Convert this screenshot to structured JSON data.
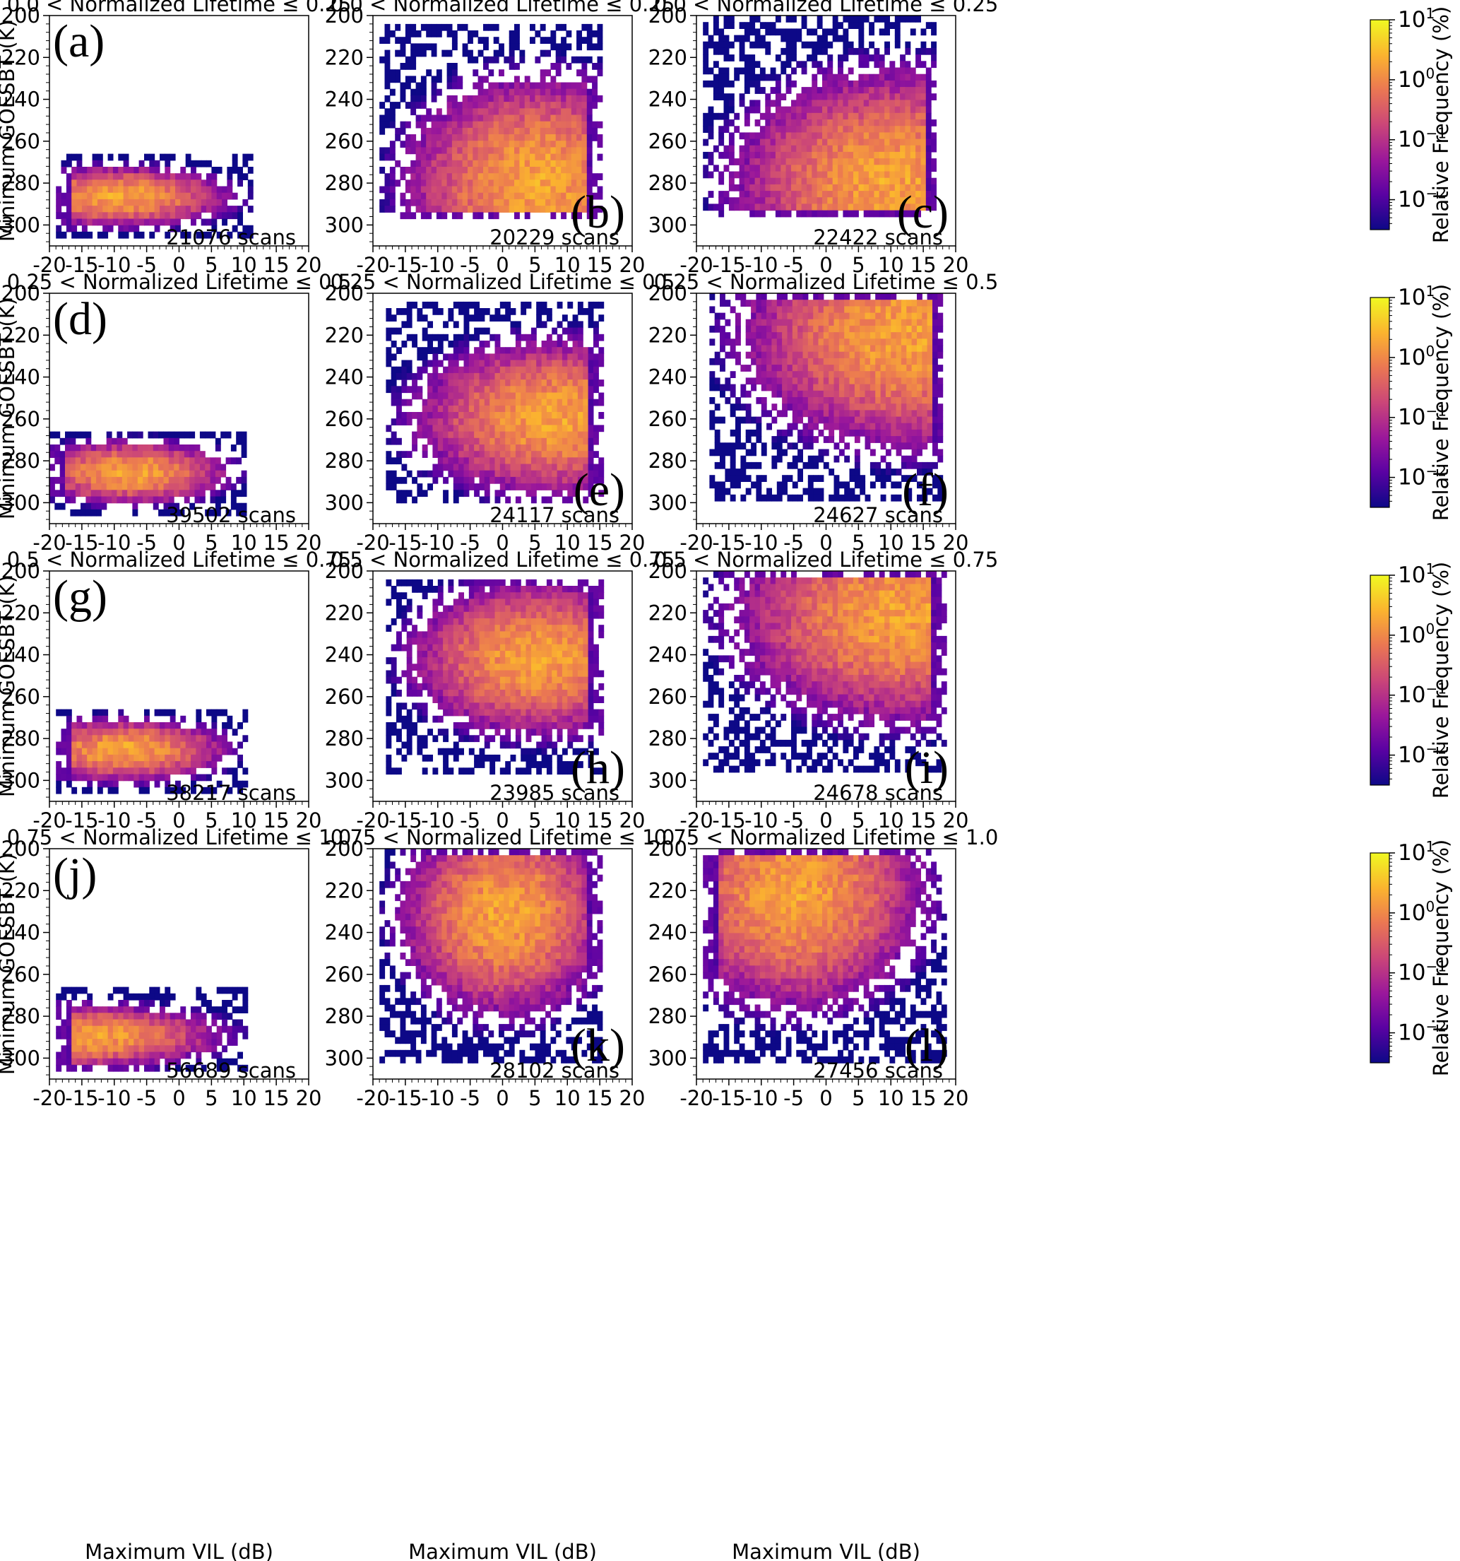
{
  "figure": {
    "colormap_stops": [
      "#0d0887",
      "#5b02a3",
      "#9a179b",
      "#cb4678",
      "#eb7852",
      "#fbb32f",
      "#f0f921"
    ],
    "colorbar": {
      "label": "Relative Frequency (%)",
      "scale": "log",
      "ticks": [
        {
          "base": "10",
          "exp": "1"
        },
        {
          "base": "10",
          "exp": "0"
        },
        {
          "base": "10",
          "exp": "−1"
        },
        {
          "base": "10",
          "exp": "−2"
        }
      ]
    },
    "x_tick_labels": [
      "-20",
      "-15",
      "-10",
      "-5",
      "0",
      "5",
      "10",
      "15",
      "20"
    ],
    "y_tick_labels": [
      "200",
      "220",
      "240",
      "260",
      "280",
      "300"
    ],
    "xlabel": "Maximum VIL (dB)",
    "ylabel": "Minimum GOESBT (K)",
    "rows": [
      {
        "title": "0.0 < Normalized Lifetime ≤ 0.25"
      },
      {
        "title": "0.25 < Normalized Lifetime ≤ 0.5"
      },
      {
        "title": "0.5 < Normalized Lifetime ≤ 0.75"
      },
      {
        "title": "0.75 < Normalized Lifetime ≤ 1.0"
      }
    ],
    "panels": [
      {
        "letter": "(a)",
        "scans": "21076 scans"
      },
      {
        "letter": "(b)",
        "scans": "20229 scans"
      },
      {
        "letter": "(c)",
        "scans": "22422 scans"
      },
      {
        "letter": "(d)",
        "scans": "39502 scans"
      },
      {
        "letter": "(e)",
        "scans": "24117 scans"
      },
      {
        "letter": "(f)",
        "scans": "24627 scans"
      },
      {
        "letter": "(g)",
        "scans": "38217 scans"
      },
      {
        "letter": "(h)",
        "scans": "23985 scans"
      },
      {
        "letter": "(i)",
        "scans": "24678 scans"
      },
      {
        "letter": "(j)",
        "scans": "56689 scans"
      },
      {
        "letter": "(k)",
        "scans": "28102 scans"
      },
      {
        "letter": "(l)",
        "scans": "27456 scans"
      }
    ]
  },
  "chart_data": [
    {
      "panel": "(a)",
      "type": "heatmap",
      "title": "0.0 < Normalized Lifetime ≤ 0.25",
      "xlabel": "",
      "ylabel": "Minimum GOESBT (K)",
      "xlim": [
        -20,
        20
      ],
      "ylim": [
        310,
        200
      ],
      "colorscale": "log",
      "x_range": [
        -19,
        11
      ],
      "y_range": [
        266,
        306
      ],
      "peak": [
        -10,
        285
      ],
      "annotation": "21076 scans"
    },
    {
      "panel": "(b)",
      "type": "heatmap",
      "title": "0.0 < Normalized Lifetime ≤ 0.25",
      "xlabel": "",
      "ylabel": "",
      "xlim": [
        -20,
        20
      ],
      "ylim": [
        310,
        200
      ],
      "colorscale": "log",
      "x_range": [
        -19,
        15
      ],
      "y_range": [
        204,
        294
      ],
      "peak": [
        5,
        278
      ],
      "annotation": "20229 scans"
    },
    {
      "panel": "(c)",
      "type": "heatmap",
      "title": "0.0 < Normalized Lifetime ≤ 0.25",
      "xlabel": "",
      "ylabel": "",
      "xlim": [
        -20,
        20
      ],
      "ylim": [
        310,
        200
      ],
      "colorscale": "log",
      "x_range": [
        -19,
        17
      ],
      "y_range": [
        200,
        294
      ],
      "peak": [
        10,
        278
      ],
      "annotation": "22422 scans"
    },
    {
      "panel": "(d)",
      "type": "heatmap",
      "title": "0.25 < Normalized Lifetime ≤ 0.5",
      "xlabel": "",
      "ylabel": "Minimum GOESBT (K)",
      "xlim": [
        -20,
        20
      ],
      "ylim": [
        310,
        200
      ],
      "colorscale": "log",
      "x_range": [
        -20,
        10
      ],
      "y_range": [
        266,
        306
      ],
      "peak": [
        -8,
        284
      ],
      "annotation": "39502 scans"
    },
    {
      "panel": "(e)",
      "type": "heatmap",
      "title": "0.25 < Normalized Lifetime ≤ 0.5",
      "xlabel": "",
      "ylabel": "",
      "xlim": [
        -20,
        20
      ],
      "ylim": [
        310,
        200
      ],
      "colorscale": "log",
      "x_range": [
        -18,
        15
      ],
      "y_range": [
        204,
        298
      ],
      "peak": [
        8,
        258
      ],
      "annotation": "24117 scans"
    },
    {
      "panel": "(f)",
      "type": "heatmap",
      "title": "0.25 < Normalized Lifetime ≤ 0.5",
      "xlabel": "",
      "ylabel": "",
      "xlim": [
        -20,
        20
      ],
      "ylim": [
        310,
        200
      ],
      "colorscale": "log",
      "x_range": [
        -18,
        18
      ],
      "y_range": [
        200,
        298
      ],
      "peak": [
        13,
        218
      ],
      "annotation": "24627 scans"
    },
    {
      "panel": "(g)",
      "type": "heatmap",
      "title": "0.5 < Normalized Lifetime ≤ 0.75",
      "xlabel": "",
      "ylabel": "Minimum GOESBT (K)",
      "xlim": [
        -20,
        20
      ],
      "ylim": [
        310,
        200
      ],
      "colorscale": "log",
      "x_range": [
        -19,
        10
      ],
      "y_range": [
        266,
        306
      ],
      "peak": [
        -9,
        284
      ],
      "annotation": "38217 scans"
    },
    {
      "panel": "(h)",
      "type": "heatmap",
      "title": "0.5 < Normalized Lifetime ≤ 0.75",
      "xlabel": "",
      "ylabel": "",
      "xlim": [
        -20,
        20
      ],
      "ylim": [
        310,
        200
      ],
      "colorscale": "log",
      "x_range": [
        -18,
        15
      ],
      "y_range": [
        204,
        294
      ],
      "peak": [
        5,
        240
      ],
      "annotation": "23985 scans"
    },
    {
      "panel": "(i)",
      "type": "heatmap",
      "title": "0.5 < Normalized Lifetime ≤ 0.75",
      "xlabel": "",
      "ylabel": "",
      "xlim": [
        -20,
        20
      ],
      "ylim": [
        310,
        200
      ],
      "colorscale": "log",
      "x_range": [
        -19,
        18
      ],
      "y_range": [
        200,
        294
      ],
      "peak": [
        12,
        220
      ],
      "annotation": "24678 scans"
    },
    {
      "panel": "(j)",
      "type": "heatmap",
      "title": "0.75 < Normalized Lifetime ≤ 1.0",
      "xlabel": "Maximum VIL (dB)",
      "ylabel": "Minimum GOESBT (K)",
      "xlim": [
        -20,
        20
      ],
      "ylim": [
        310,
        200
      ],
      "colorscale": "log",
      "x_range": [
        -19,
        10
      ],
      "y_range": [
        266,
        304
      ],
      "peak": [
        -15,
        288
      ],
      "annotation": "56689 scans"
    },
    {
      "panel": "(k)",
      "type": "heatmap",
      "title": "0.75 < Normalized Lifetime ≤ 1.0",
      "xlabel": "Maximum VIL (dB)",
      "ylabel": "",
      "xlim": [
        -20,
        20
      ],
      "ylim": [
        310,
        200
      ],
      "colorscale": "log",
      "x_range": [
        -19,
        15
      ],
      "y_range": [
        200,
        300
      ],
      "peak": [
        0,
        230
      ],
      "annotation": "28102 scans"
    },
    {
      "panel": "(l)",
      "type": "heatmap",
      "title": "0.75 < Normalized Lifetime ≤ 1.0",
      "xlabel": "Maximum VIL (dB)",
      "ylabel": "",
      "xlim": [
        -20,
        20
      ],
      "ylim": [
        310,
        200
      ],
      "colorscale": "log",
      "x_range": [
        -19,
        18
      ],
      "y_range": [
        200,
        300
      ],
      "peak": [
        -5,
        220
      ],
      "annotation": "27456 scans"
    }
  ]
}
